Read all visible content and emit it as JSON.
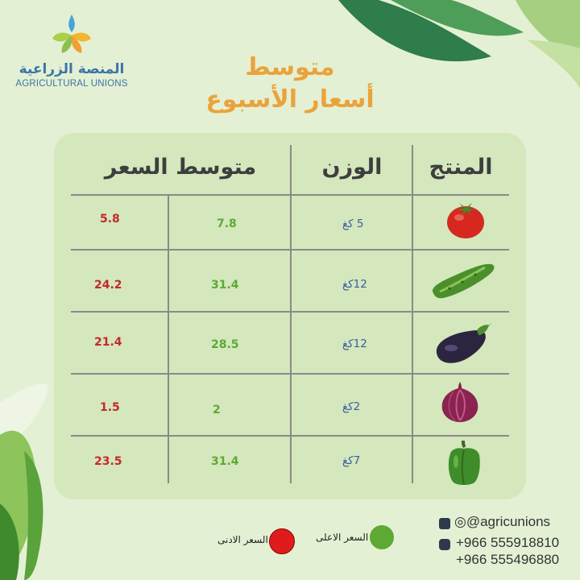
{
  "brand": {
    "name_ar": "المنصة الزراعية",
    "name_en": "AGRICULTURAL UNIONS"
  },
  "title": {
    "line1": "متوسط",
    "line2": "أسعار الأسبوع"
  },
  "table": {
    "headers": {
      "product": "المنتج",
      "weight": "الوزن",
      "avg_price": "متوسط السعر"
    },
    "rows": [
      {
        "product_icon": "tomato-icon",
        "weight": "5 كغ",
        "high": "7.8",
        "low": "5.8"
      },
      {
        "product_icon": "cucumber-icon",
        "weight": "12كغ",
        "high": "31.4",
        "low": "24.2"
      },
      {
        "product_icon": "eggplant-icon",
        "weight": "12كغ",
        "high": "28.5",
        "low": "21.4"
      },
      {
        "product_icon": "onion-icon",
        "weight": "2كغ",
        "high": "2",
        "low": "1.5"
      },
      {
        "product_icon": "pepper-icon",
        "weight": "7كغ",
        "high": "31.4",
        "low": "23.5"
      }
    ]
  },
  "legend": {
    "high_label": "السعر الاعلى",
    "low_label": "السعر الادنى",
    "high_color": "#5da933",
    "low_color": "#e01b1b"
  },
  "contact": {
    "social": "@agricunions",
    "phone1": "+966 555918810",
    "phone2": "+966 555496880"
  },
  "colors": {
    "background": "#e4f0d3",
    "card": "#d4e7bd",
    "title": "#eaa33b",
    "brand": "#3b74a9"
  }
}
